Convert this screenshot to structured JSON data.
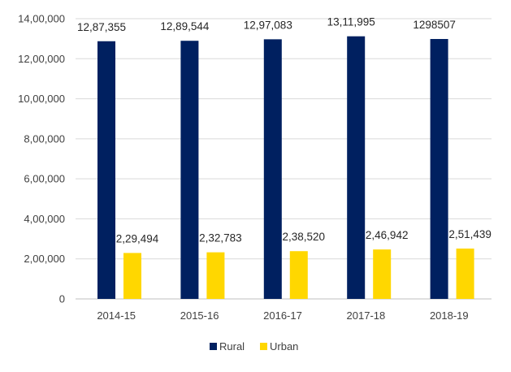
{
  "chart_data": {
    "type": "bar",
    "categories": [
      "2014-15",
      "2015-16",
      "2016-17",
      "2017-18",
      "2018-19"
    ],
    "series": [
      {
        "name": "Rural",
        "color": "#002060",
        "values": [
          1287355,
          1289544,
          1297083,
          1311995,
          1298507
        ],
        "labels": [
          "12,87,355",
          "12,89,544",
          "12,97,083",
          "13,11,995",
          "1298507"
        ]
      },
      {
        "name": "Urban",
        "color": "#FFD700",
        "values": [
          229494,
          232783,
          238520,
          246942,
          251439
        ],
        "labels": [
          "2,29,494",
          "2,32,783",
          "2,38,520",
          "2,46,942",
          "2,51,439"
        ]
      }
    ],
    "yticks": [
      0,
      200000,
      400000,
      600000,
      800000,
      1000000,
      1200000,
      1400000
    ],
    "ytick_labels": [
      "0",
      "2,00,000",
      "4,00,000",
      "6,00,000",
      "8,00,000",
      "10,00,000",
      "12,00,000",
      "14,00,000"
    ],
    "ylim": [
      0,
      1400000
    ],
    "grid": true,
    "legend": "bottom-center",
    "title": "",
    "xlabel": "",
    "ylabel": ""
  }
}
